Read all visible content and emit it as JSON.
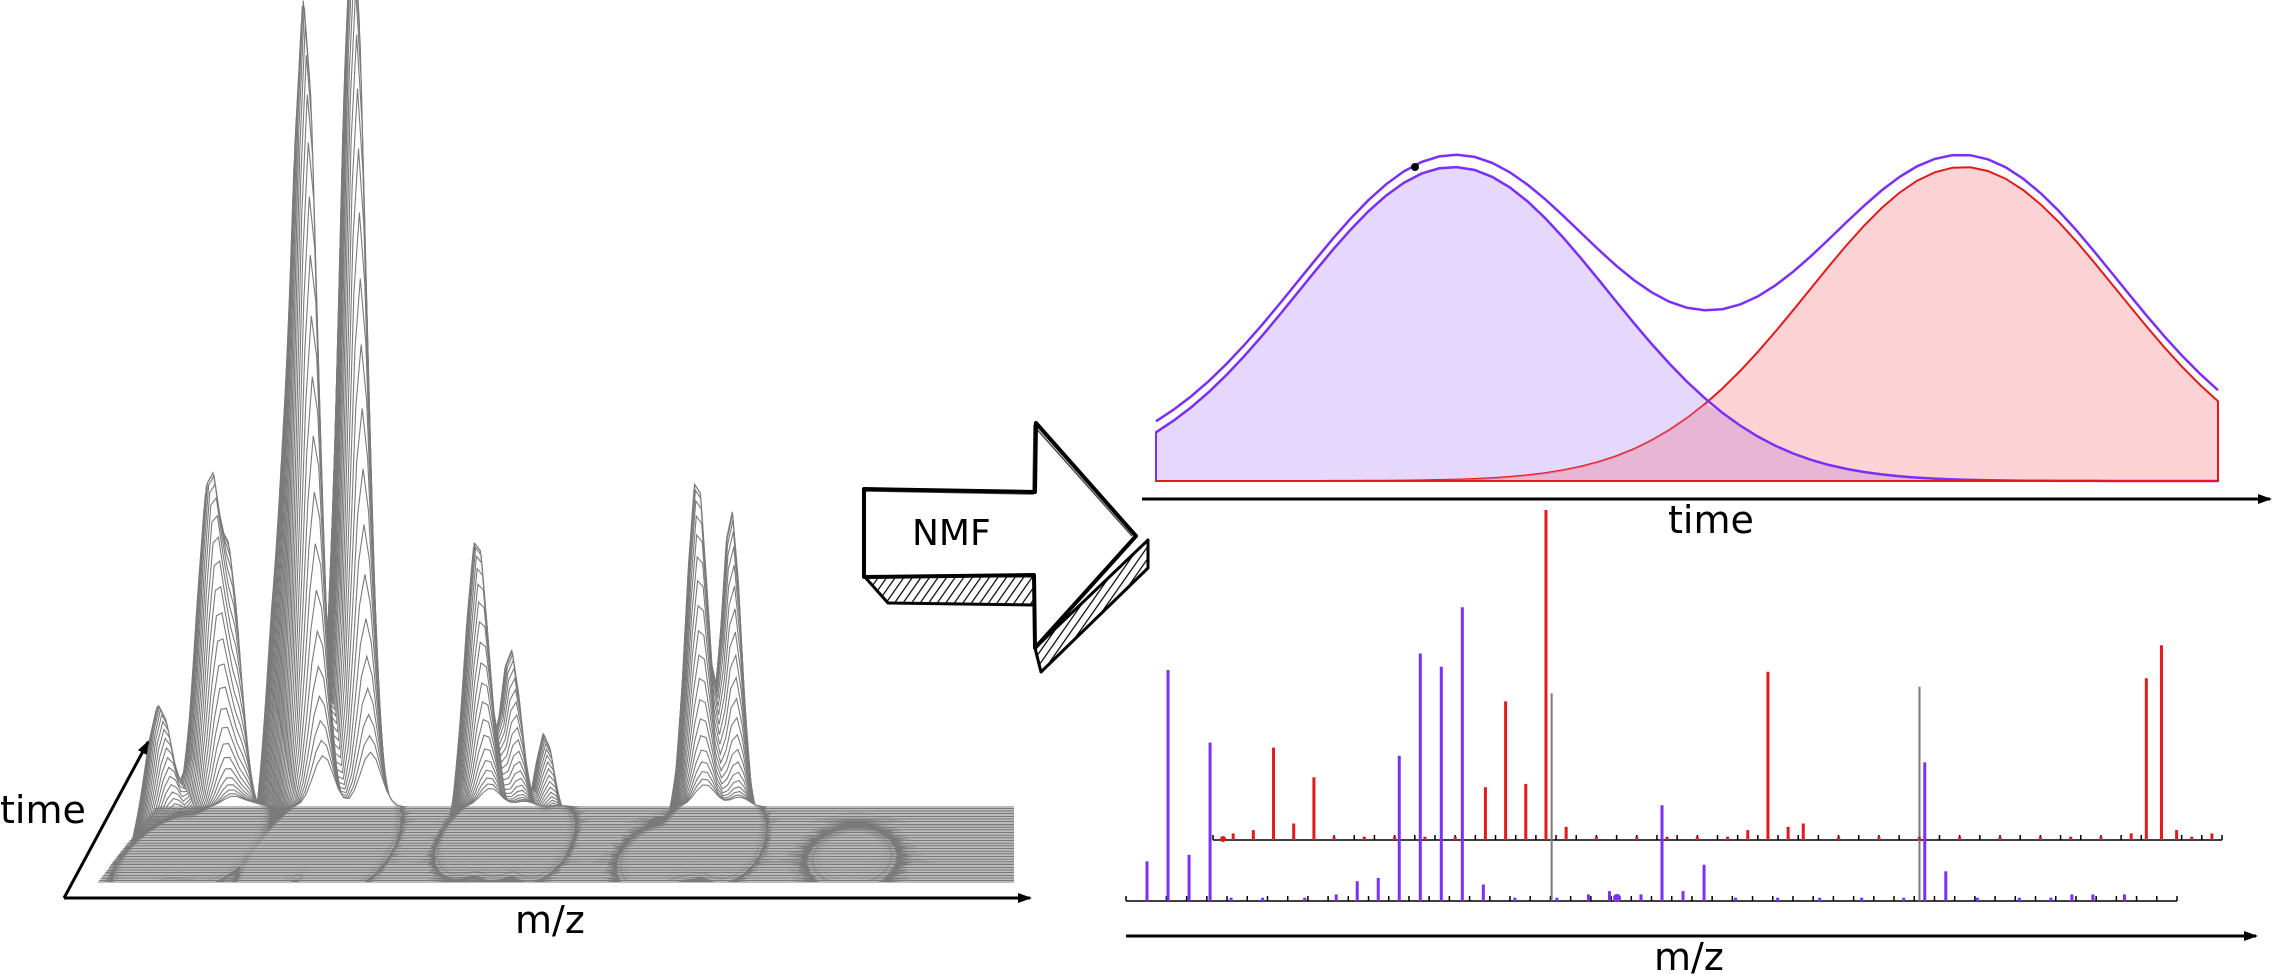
{
  "labels": {
    "left_time": "time",
    "left_mz": "m/z",
    "arrow": "NMF",
    "right_time": "time",
    "right_mz": "m/z"
  },
  "colors": {
    "purple": "#7b2ff7",
    "red": "#e31a1c",
    "purple_fill": "#e6d8fd",
    "red_fill": "#fcd3d4",
    "gray": "#7a7a7a",
    "black": "#000000"
  },
  "chart_data": {
    "type": "area",
    "elution_profiles": [
      {
        "color": "purple",
        "center": 0.28,
        "width": 0.145,
        "height": 1.0
      },
      {
        "color": "red",
        "center": 0.76,
        "width": 0.145,
        "height": 1.0
      }
    ],
    "spectrum_red": [
      [
        0.02,
        0.02
      ],
      [
        0.04,
        0.03
      ],
      [
        0.06,
        0.28
      ],
      [
        0.08,
        0.05
      ],
      [
        0.1,
        0.19
      ],
      [
        0.12,
        0.01
      ],
      [
        0.15,
        0.01
      ],
      [
        0.18,
        0.01
      ],
      [
        0.21,
        0.01
      ],
      [
        0.24,
        0.01
      ],
      [
        0.27,
        0.16
      ],
      [
        0.29,
        0.42
      ],
      [
        0.31,
        0.17
      ],
      [
        0.33,
        1.0
      ],
      [
        0.35,
        0.04
      ],
      [
        0.38,
        0.01
      ],
      [
        0.42,
        0.01
      ],
      [
        0.45,
        0.01
      ],
      [
        0.48,
        0.01
      ],
      [
        0.51,
        0.01
      ],
      [
        0.53,
        0.03
      ],
      [
        0.55,
        0.51
      ],
      [
        0.57,
        0.04
      ],
      [
        0.585,
        0.05
      ],
      [
        0.62,
        0.01
      ],
      [
        0.66,
        0.01
      ],
      [
        0.7,
        0.01
      ],
      [
        0.74,
        0.01
      ],
      [
        0.78,
        0.01
      ],
      [
        0.82,
        0.01
      ],
      [
        0.85,
        0.01
      ],
      [
        0.88,
        0.01
      ],
      [
        0.91,
        0.02
      ],
      [
        0.925,
        0.49
      ],
      [
        0.94,
        0.59
      ],
      [
        0.955,
        0.03
      ],
      [
        0.97,
        0.01
      ],
      [
        0.99,
        0.02
      ]
    ],
    "spectrum_purple": [
      [
        0.02,
        0.12
      ],
      [
        0.04,
        0.7
      ],
      [
        0.06,
        0.14
      ],
      [
        0.08,
        0.48
      ],
      [
        0.1,
        0.01
      ],
      [
        0.13,
        0.01
      ],
      [
        0.17,
        0.01
      ],
      [
        0.2,
        0.02
      ],
      [
        0.22,
        0.06
      ],
      [
        0.24,
        0.07
      ],
      [
        0.26,
        0.44
      ],
      [
        0.28,
        0.75
      ],
      [
        0.3,
        0.71
      ],
      [
        0.32,
        0.89
      ],
      [
        0.34,
        0.05
      ],
      [
        0.37,
        0.01
      ],
      [
        0.41,
        0.01
      ],
      [
        0.44,
        0.02
      ],
      [
        0.46,
        0.03
      ],
      [
        0.49,
        0.02
      ],
      [
        0.51,
        0.29
      ],
      [
        0.53,
        0.03
      ],
      [
        0.55,
        0.11
      ],
      [
        0.58,
        0.01
      ],
      [
        0.62,
        0.01
      ],
      [
        0.66,
        0.01
      ],
      [
        0.7,
        0.01
      ],
      [
        0.74,
        0.01
      ],
      [
        0.76,
        0.42
      ],
      [
        0.78,
        0.09
      ],
      [
        0.81,
        0.01
      ],
      [
        0.85,
        0.01
      ],
      [
        0.88,
        0.01
      ],
      [
        0.9,
        0.02
      ],
      [
        0.92,
        0.02
      ],
      [
        0.95,
        0.02
      ]
    ],
    "spectrum_gray": [
      [
        0.405,
        0.59
      ],
      [
        0.755,
        0.61
      ]
    ]
  }
}
